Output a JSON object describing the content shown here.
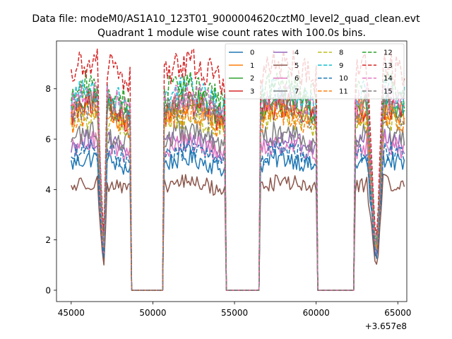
{
  "figure": {
    "suptitle": "Data file: modeM0/AS1A10_123T01_9000004620cztM0_level2_quad_clean.evt",
    "offset_label": "+3.657e8"
  },
  "chart_data": {
    "type": "line",
    "title": "Quadrant 1 module wise count rates with 100.0s bins.",
    "xlabel": "",
    "ylabel": "",
    "x_offset": 365700000,
    "xlim": [
      44100,
      65550
    ],
    "ylim": [
      -0.45,
      9.9
    ],
    "xticks": [
      45000,
      50000,
      55000,
      60000,
      65000
    ],
    "xtick_labels": [
      "45000",
      "50000",
      "55000",
      "60000",
      "65000"
    ],
    "yticks": [
      0,
      2,
      4,
      6,
      8
    ],
    "ytick_labels": [
      "0",
      "2",
      "4",
      "6",
      "8"
    ],
    "grid": false,
    "legend": {
      "location": "upper right",
      "columns": 4
    },
    "bin_seconds": 100.0,
    "segments": [
      {
        "start": 45000,
        "dip_start": 46600,
        "dip_min": 47000,
        "dip_end": 47200,
        "end": 48600
      },
      {
        "start": 50700,
        "end": 54400
      },
      {
        "start": 56600,
        "end": 60000
      },
      {
        "start": 62400,
        "dip_start": 63100,
        "dip_min": 63700,
        "dip_end": 64100,
        "end": 65400
      }
    ],
    "gaps_value": 0,
    "series": [
      {
        "name": "0",
        "color": "#1f77b4",
        "dash": "solid",
        "mean": 5.0
      },
      {
        "name": "1",
        "color": "#ff7f0e",
        "dash": "solid",
        "mean": 7.0
      },
      {
        "name": "2",
        "color": "#2ca02c",
        "dash": "solid",
        "mean": 7.2
      },
      {
        "name": "3",
        "color": "#d62728",
        "dash": "solid",
        "mean": 7.0
      },
      {
        "name": "4",
        "color": "#9467bd",
        "dash": "solid",
        "mean": 5.7
      },
      {
        "name": "5",
        "color": "#8c564b",
        "dash": "solid",
        "mean": 4.1
      },
      {
        "name": "6",
        "color": "#e377c2",
        "dash": "solid",
        "mean": 5.6
      },
      {
        "name": "7",
        "color": "#7f7f7f",
        "dash": "solid",
        "mean": 6.0
      },
      {
        "name": "8",
        "color": "#bcbd22",
        "dash": "dashed",
        "mean": 6.6
      },
      {
        "name": "9",
        "color": "#17becf",
        "dash": "dashed",
        "mean": 7.6
      },
      {
        "name": "10",
        "color": "#1f77b4",
        "dash": "dashed",
        "mean": 5.3
      },
      {
        "name": "11",
        "color": "#ff7f0e",
        "dash": "dashed",
        "mean": 6.7
      },
      {
        "name": "12",
        "color": "#2ca02c",
        "dash": "dashed",
        "mean": 7.8
      },
      {
        "name": "13",
        "color": "#d62728",
        "dash": "dashed",
        "mean": 8.6
      },
      {
        "name": "14",
        "color": "#e377c2",
        "dash": "dashed",
        "mean": 7.4
      },
      {
        "name": "15",
        "color": "#7f7f7f",
        "dash": "dashed",
        "mean": 7.0
      }
    ]
  }
}
